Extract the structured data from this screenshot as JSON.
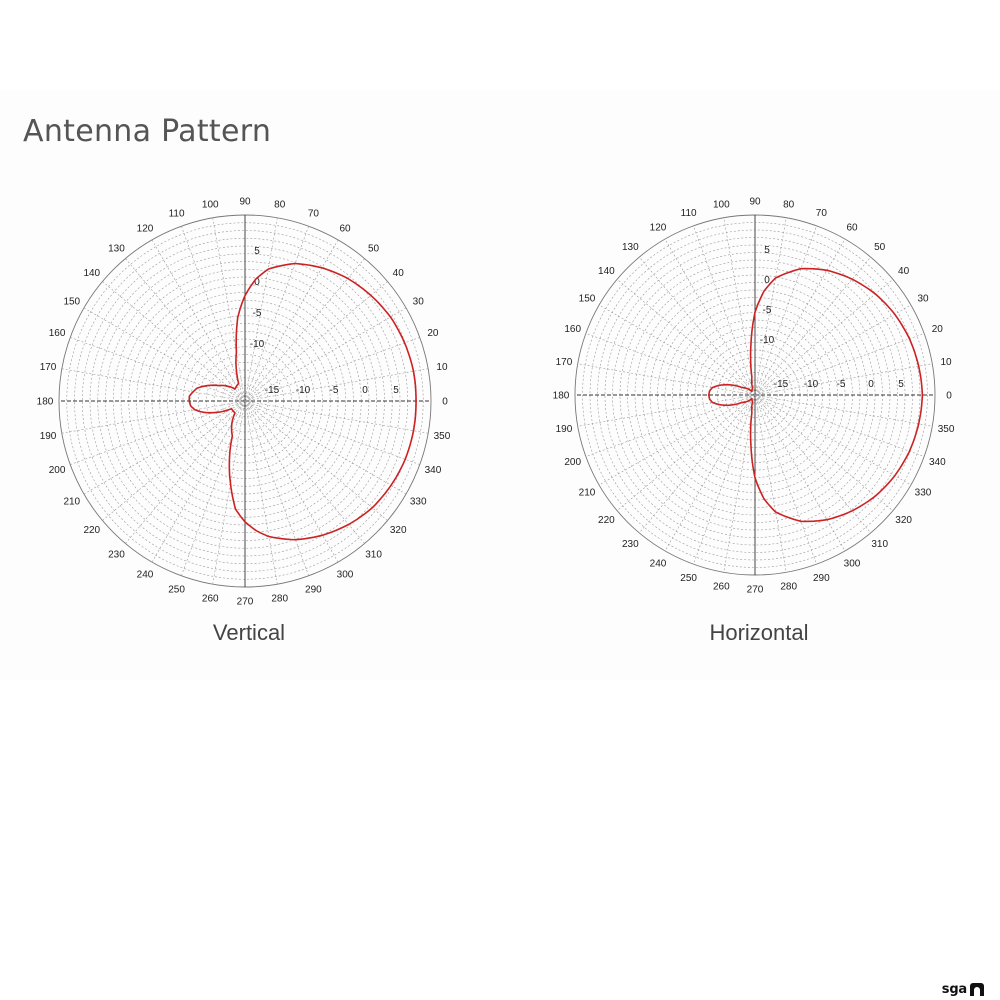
{
  "page": {
    "title": "Antenna Pattern",
    "logo_text": "sga"
  },
  "colors": {
    "pattern": "#cc2222",
    "grid": "#9a9a9a",
    "axis": "#333333",
    "text": "#222222"
  },
  "chart_data": [
    {
      "type": "polar",
      "title": "Vertical",
      "angle_unit": "degrees",
      "angle_ticks": [
        0,
        10,
        20,
        30,
        40,
        50,
        60,
        70,
        80,
        90,
        100,
        110,
        120,
        130,
        140,
        150,
        160,
        170,
        180,
        190,
        200,
        210,
        220,
        230,
        240,
        250,
        260,
        270,
        280,
        290,
        300,
        310,
        320,
        330,
        340,
        350
      ],
      "radial_ticks": [
        -15,
        -10,
        -5,
        0,
        5
      ],
      "radial_range": [
        -20,
        10
      ],
      "grid": true,
      "series": [
        {
          "angles": [
            0,
            10,
            20,
            30,
            40,
            50,
            60,
            70,
            80,
            85,
            90,
            95,
            100,
            110,
            130,
            150,
            160,
            165,
            170,
            175,
            180,
            185,
            190,
            195,
            200,
            210,
            230,
            250,
            260,
            265,
            270,
            275,
            280,
            290,
            300,
            310,
            320,
            330,
            340,
            350
          ],
          "values": [
            7.6,
            7.6,
            7.4,
            7.1,
            6.5,
            5.8,
            4.8,
            3.6,
            1.6,
            -0.3,
            -3.0,
            -6.5,
            -12.0,
            -17.0,
            -17.5,
            -15.0,
            -13.0,
            -12.0,
            -11.5,
            -11.0,
            -11.0,
            -11.2,
            -11.8,
            -13.0,
            -14.5,
            -17.5,
            -17.5,
            -14.0,
            -6.5,
            -2.5,
            -0.5,
            1.0,
            2.2,
            3.8,
            5.0,
            6.0,
            6.8,
            7.2,
            7.5,
            7.6
          ]
        }
      ]
    },
    {
      "type": "polar",
      "title": "Horizontal",
      "angle_unit": "degrees",
      "angle_ticks": [
        0,
        10,
        20,
        30,
        40,
        50,
        60,
        70,
        80,
        90,
        100,
        110,
        120,
        130,
        140,
        150,
        160,
        170,
        180,
        190,
        200,
        210,
        220,
        230,
        240,
        250,
        260,
        270,
        280,
        290,
        300,
        310,
        320,
        330,
        340,
        350
      ],
      "radial_ticks": [
        -15,
        -10,
        -5,
        0,
        5
      ],
      "radial_range": [
        -20,
        10
      ],
      "grid": true,
      "series": [
        {
          "angles": [
            0,
            10,
            20,
            30,
            40,
            50,
            60,
            70,
            80,
            85,
            90,
            95,
            100,
            110,
            130,
            150,
            160,
            165,
            170,
            175,
            180,
            185,
            190,
            195,
            200,
            210,
            230,
            250,
            260,
            265,
            270,
            275,
            280,
            290,
            300,
            310,
            320,
            330,
            340,
            350
          ],
          "values": [
            7.9,
            7.7,
            7.4,
            6.9,
            6.2,
            5.2,
            4.0,
            2.4,
            -0.2,
            -2.6,
            -6.2,
            -12.0,
            -17.0,
            -18.8,
            -19.2,
            -17.5,
            -15.0,
            -13.8,
            -12.8,
            -12.4,
            -12.3,
            -12.4,
            -12.8,
            -13.8,
            -15.0,
            -17.5,
            -19.2,
            -18.8,
            -17.0,
            -12.0,
            -6.2,
            -2.6,
            -0.2,
            2.4,
            4.0,
            5.2,
            6.2,
            6.9,
            7.4,
            7.7
          ]
        }
      ]
    }
  ]
}
